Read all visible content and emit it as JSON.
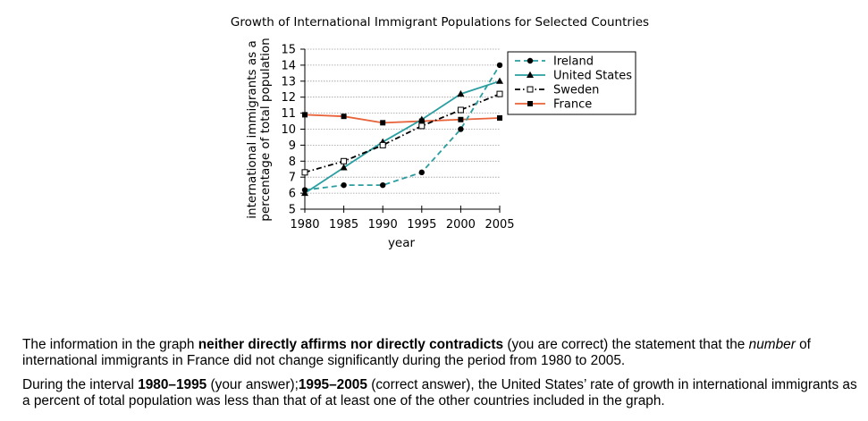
{
  "chart_data": {
    "type": "line",
    "title": "Growth of International Immigrant Populations for Selected Countries",
    "xlabel": "year",
    "ylabel_line1": "international immigrants as a",
    "ylabel_line2": "percentage of total population",
    "x": [
      1980,
      1985,
      1990,
      1995,
      2000,
      2005
    ],
    "xlim": [
      1980,
      2005
    ],
    "ylim": [
      5,
      15
    ],
    "yticks": [
      5,
      6,
      7,
      8,
      9,
      10,
      11,
      12,
      13,
      14,
      15
    ],
    "grid": true,
    "legend_position": "top-right",
    "series": [
      {
        "name": "Ireland",
        "values": [
          6.2,
          6.5,
          6.5,
          7.3,
          10.0,
          14.0
        ],
        "color": "#2a9ea0",
        "line_style": "dashed",
        "marker": "filled-circle",
        "marker_color": "#000000"
      },
      {
        "name": "United States",
        "values": [
          6.0,
          7.6,
          9.2,
          10.6,
          12.2,
          13.0
        ],
        "color": "#2a9ea0",
        "line_style": "solid",
        "marker": "filled-triangle",
        "marker_color": "#000000"
      },
      {
        "name": "Sweden",
        "values": [
          7.3,
          8.0,
          9.0,
          10.2,
          11.2,
          12.2
        ],
        "color": "#000000",
        "line_style": "dash-dot",
        "marker": "open-square",
        "marker_color": "#000000"
      },
      {
        "name": "France",
        "values": [
          10.9,
          10.8,
          10.4,
          10.5,
          10.6,
          10.7
        ],
        "color": "#e8623a",
        "line_style": "solid",
        "marker": "filled-square",
        "marker_color": "#000000"
      }
    ]
  },
  "explanation": {
    "p1_a": "The information in the graph ",
    "p1_b": "neither directly affirms nor directly contradicts",
    "p1_c": " (you are correct) the statement that the ",
    "p1_d": "number",
    "p1_e": " of international immigrants in France did not change significantly during the period from 1980 to 2005.",
    "p2_a": "During the interval ",
    "p2_b": "1980–1995",
    "p2_c": " (your answer);",
    "p2_d": "1995–2005",
    "p2_e": " (correct answer), the United States’ rate of growth in international immigrants as a percent of total population was less than that of at least one of the other countries included in the graph."
  }
}
